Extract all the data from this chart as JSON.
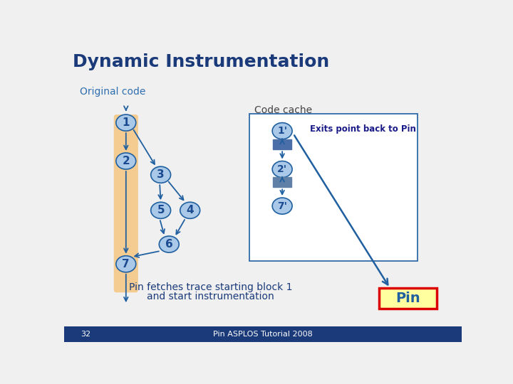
{
  "title": "Dynamic Instrumentation",
  "bg_color": "#f0f0f0",
  "title_color": "#1a3a7a",
  "title_fontsize": 18,
  "footer_bg": "#1a3a7a",
  "footer_text": "Pin ASPLOS Tutorial 2008",
  "footer_num": "32",
  "original_code_label": "Original code",
  "code_cache_label": "Code cache",
  "exits_label": "Exits point back to Pin",
  "pin_label": "Pin",
  "bottom_text1": "Pin fetches trace starting block 1",
  "bottom_text2": "and start instrumentation",
  "node_fill": "#aac8e8",
  "node_edge": "#2060a0",
  "node_text": "#1a4a90",
  "orig_strip_color": "#f5c888",
  "cache_rect1_color": "#4a6ea8",
  "cache_rect2_color": "#6080a8",
  "pin_box_fill": "#ffffa0",
  "pin_box_edge": "#dd0000",
  "arrow_color": "#2060a0",
  "exits_arrow_color": "#2060a0",
  "cache_box_edge": "#2060a0",
  "label_color_orig": "#3070b0",
  "label_color_cache": "#444444",
  "exits_text_color": "#1a1a88",
  "bottom_text_color": "#1a3a7a",
  "pin_text_color": "#2060a0"
}
